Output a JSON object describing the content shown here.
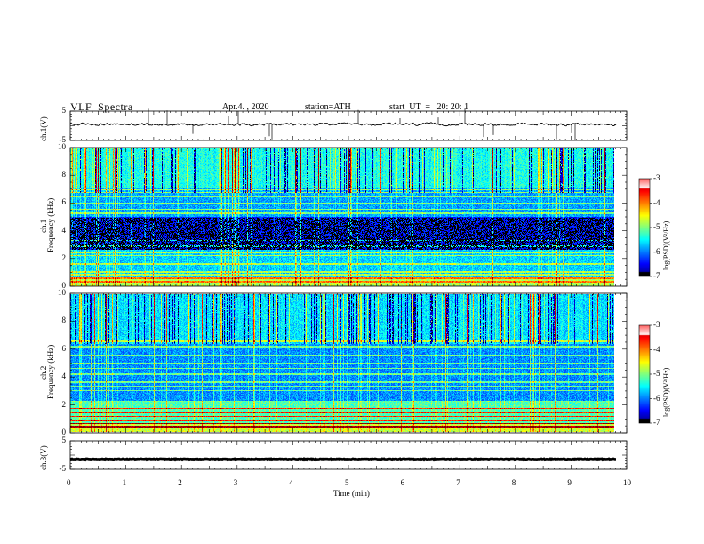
{
  "header": {
    "title": "VLF  Spectra",
    "date": "Apr.4. , 2020",
    "station": "station=ATH",
    "start_ut": "start  UT  =   20: 20: 1"
  },
  "chart_data": [
    {
      "type": "line",
      "name": "waveform-ch1",
      "ylabel": "ch.1(V)",
      "yticks": [
        "5",
        "-5"
      ],
      "ylim": [
        -5,
        5
      ],
      "xlim": [
        0,
        10
      ],
      "baseline_v": 0.5
    },
    {
      "type": "heatmap",
      "name": "spectrogram-ch1",
      "ylabel": "ch.1",
      "ylabel2": "Frequency  (kHz)",
      "yticks": [
        "0",
        "2",
        "4",
        "6",
        "8",
        "10"
      ],
      "ylim": [
        0,
        10
      ],
      "xlim": [
        0,
        9.8
      ],
      "colorbar": {
        "label": "log(PSD)(V²/Hz)",
        "ticks": [
          "-3",
          "-4",
          "-5",
          "-6",
          "-7"
        ],
        "range": [
          -7,
          -3
        ]
      }
    },
    {
      "type": "heatmap",
      "name": "spectrogram-ch2",
      "ylabel": "ch.2",
      "ylabel2": "Frequency  (kHz)",
      "yticks": [
        "0",
        "2",
        "4",
        "6",
        "8",
        "10"
      ],
      "ylim": [
        0,
        10
      ],
      "xlim": [
        0,
        9.8
      ],
      "colorbar": {
        "label": "log(PSD)(V²/Hz)",
        "ticks": [
          "-3",
          "-4",
          "-5",
          "-6",
          "-7"
        ],
        "range": [
          -7,
          -3
        ]
      }
    },
    {
      "type": "line",
      "name": "waveform-ch3",
      "ylabel": "ch.3(V)",
      "yticks": [
        "5",
        "-5"
      ],
      "ylim": [
        -5,
        5
      ],
      "xlim": [
        0,
        10
      ],
      "baseline_v": -1.5
    }
  ],
  "xaxis": {
    "label": "Time  (min)",
    "ticks": [
      "0",
      "1",
      "2",
      "3",
      "4",
      "5",
      "6",
      "7",
      "8",
      "9",
      "10"
    ],
    "range": [
      0,
      10
    ]
  }
}
